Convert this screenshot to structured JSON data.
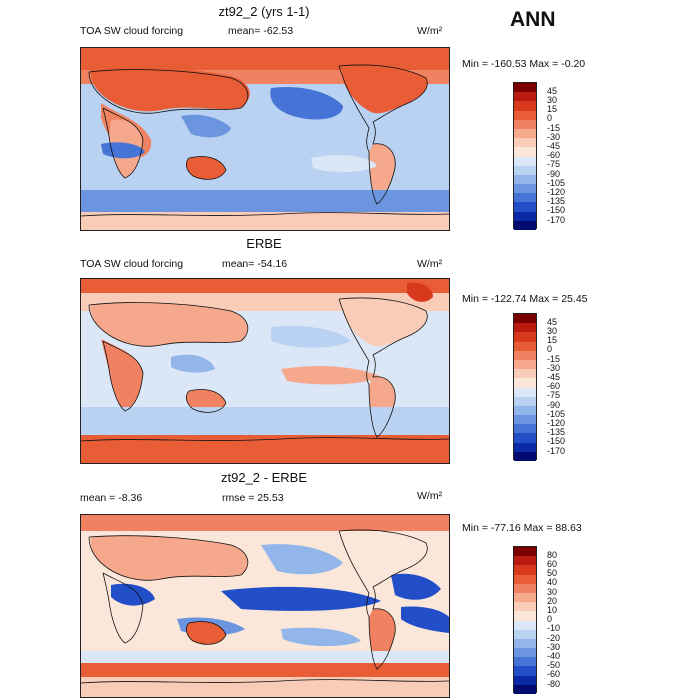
{
  "season": "ANN",
  "panels": [
    {
      "title": "zt92_2 (yrs 1-1)",
      "left_label": "TOA SW cloud forcing",
      "stat_label": "mean=",
      "stat_value": "-62.53",
      "units": "W/m²",
      "minmax": "Min = -160.53 Max =   -0.20",
      "colorbar_levels": [
        "45",
        "30",
        "15",
        "0",
        "-15",
        "-30",
        "-45",
        "-60",
        "-75",
        "-90",
        "-105",
        "-120",
        "-135",
        "-150",
        "-170"
      ],
      "colorbar_colors": [
        "#7a0000",
        "#b81c10",
        "#d8391d",
        "#e85c36",
        "#f08262",
        "#f5a88b",
        "#f8ccb6",
        "#fbe7da",
        "#dbe7f6",
        "#b9d2f1",
        "#93b6ea",
        "#6c95df",
        "#4673d6",
        "#224fc8",
        "#0a2aa5",
        "#000a6e"
      ],
      "mean_value": -62.53
    },
    {
      "title": "ERBE",
      "left_label": "TOA SW cloud forcing",
      "stat_label": "mean=",
      "stat_value": "-54.16",
      "units": "W/m²",
      "minmax": "Min = -122.74 Max =   25.45",
      "colorbar_levels": [
        "45",
        "30",
        "15",
        "0",
        "-15",
        "-30",
        "-45",
        "-60",
        "-75",
        "-90",
        "-105",
        "-120",
        "-135",
        "-150",
        "-170"
      ],
      "colorbar_colors": [
        "#7a0000",
        "#b81c10",
        "#d8391d",
        "#e85c36",
        "#f08262",
        "#f5a88b",
        "#f8ccb6",
        "#fbe7da",
        "#dbe7f6",
        "#b9d2f1",
        "#93b6ea",
        "#6c95df",
        "#4673d6",
        "#224fc8",
        "#0a2aa5",
        "#000a6e"
      ],
      "mean_value": -54.16
    },
    {
      "title": "zt92_2 - ERBE",
      "left_label": "mean =",
      "left_value": "-8.36",
      "stat_label": "rmse =",
      "stat_value": "25.53",
      "units": "W/m²",
      "minmax": "Min = -77.16 Max =   88.63",
      "colorbar_levels": [
        "80",
        "60",
        "50",
        "40",
        "30",
        "20",
        "10",
        "0",
        "-10",
        "-20",
        "-30",
        "-40",
        "-50",
        "-60",
        "-80"
      ],
      "colorbar_colors": [
        "#7a0000",
        "#b81c10",
        "#d8391d",
        "#e85c36",
        "#f08262",
        "#f5a88b",
        "#f8ccb6",
        "#fbe7da",
        "#dbe7f6",
        "#b9d2f1",
        "#93b6ea",
        "#6c95df",
        "#4673d6",
        "#224fc8",
        "#0a2aa5",
        "#000a6e"
      ],
      "mean_value": -8.36
    }
  ]
}
